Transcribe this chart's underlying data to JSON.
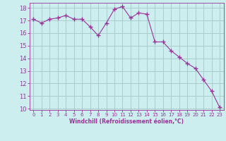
{
  "x": [
    0,
    1,
    2,
    3,
    4,
    5,
    6,
    7,
    8,
    9,
    10,
    11,
    12,
    13,
    14,
    15,
    16,
    17,
    18,
    19,
    20,
    21,
    22,
    23
  ],
  "y": [
    17.1,
    16.8,
    17.1,
    17.2,
    17.4,
    17.1,
    17.1,
    16.5,
    15.8,
    16.8,
    17.9,
    18.1,
    17.2,
    17.6,
    17.5,
    15.3,
    15.3,
    14.6,
    14.1,
    13.6,
    13.2,
    12.3,
    11.4,
    10.1
  ],
  "line_color": "#993399",
  "marker": "+",
  "marker_size": 4,
  "bg_color": "#cceeee",
  "grid_color": "#aacccc",
  "xlabel": "Windchill (Refroidissement éolien,°C)",
  "xlabel_color": "#993399",
  "tick_color": "#993399",
  "ylim": [
    9.9,
    18.4
  ],
  "xlim": [
    -0.5,
    23.5
  ],
  "yticks": [
    10,
    11,
    12,
    13,
    14,
    15,
    16,
    17,
    18
  ],
  "xticks": [
    0,
    1,
    2,
    3,
    4,
    5,
    6,
    7,
    8,
    9,
    10,
    11,
    12,
    13,
    14,
    15,
    16,
    17,
    18,
    19,
    20,
    21,
    22,
    23
  ]
}
